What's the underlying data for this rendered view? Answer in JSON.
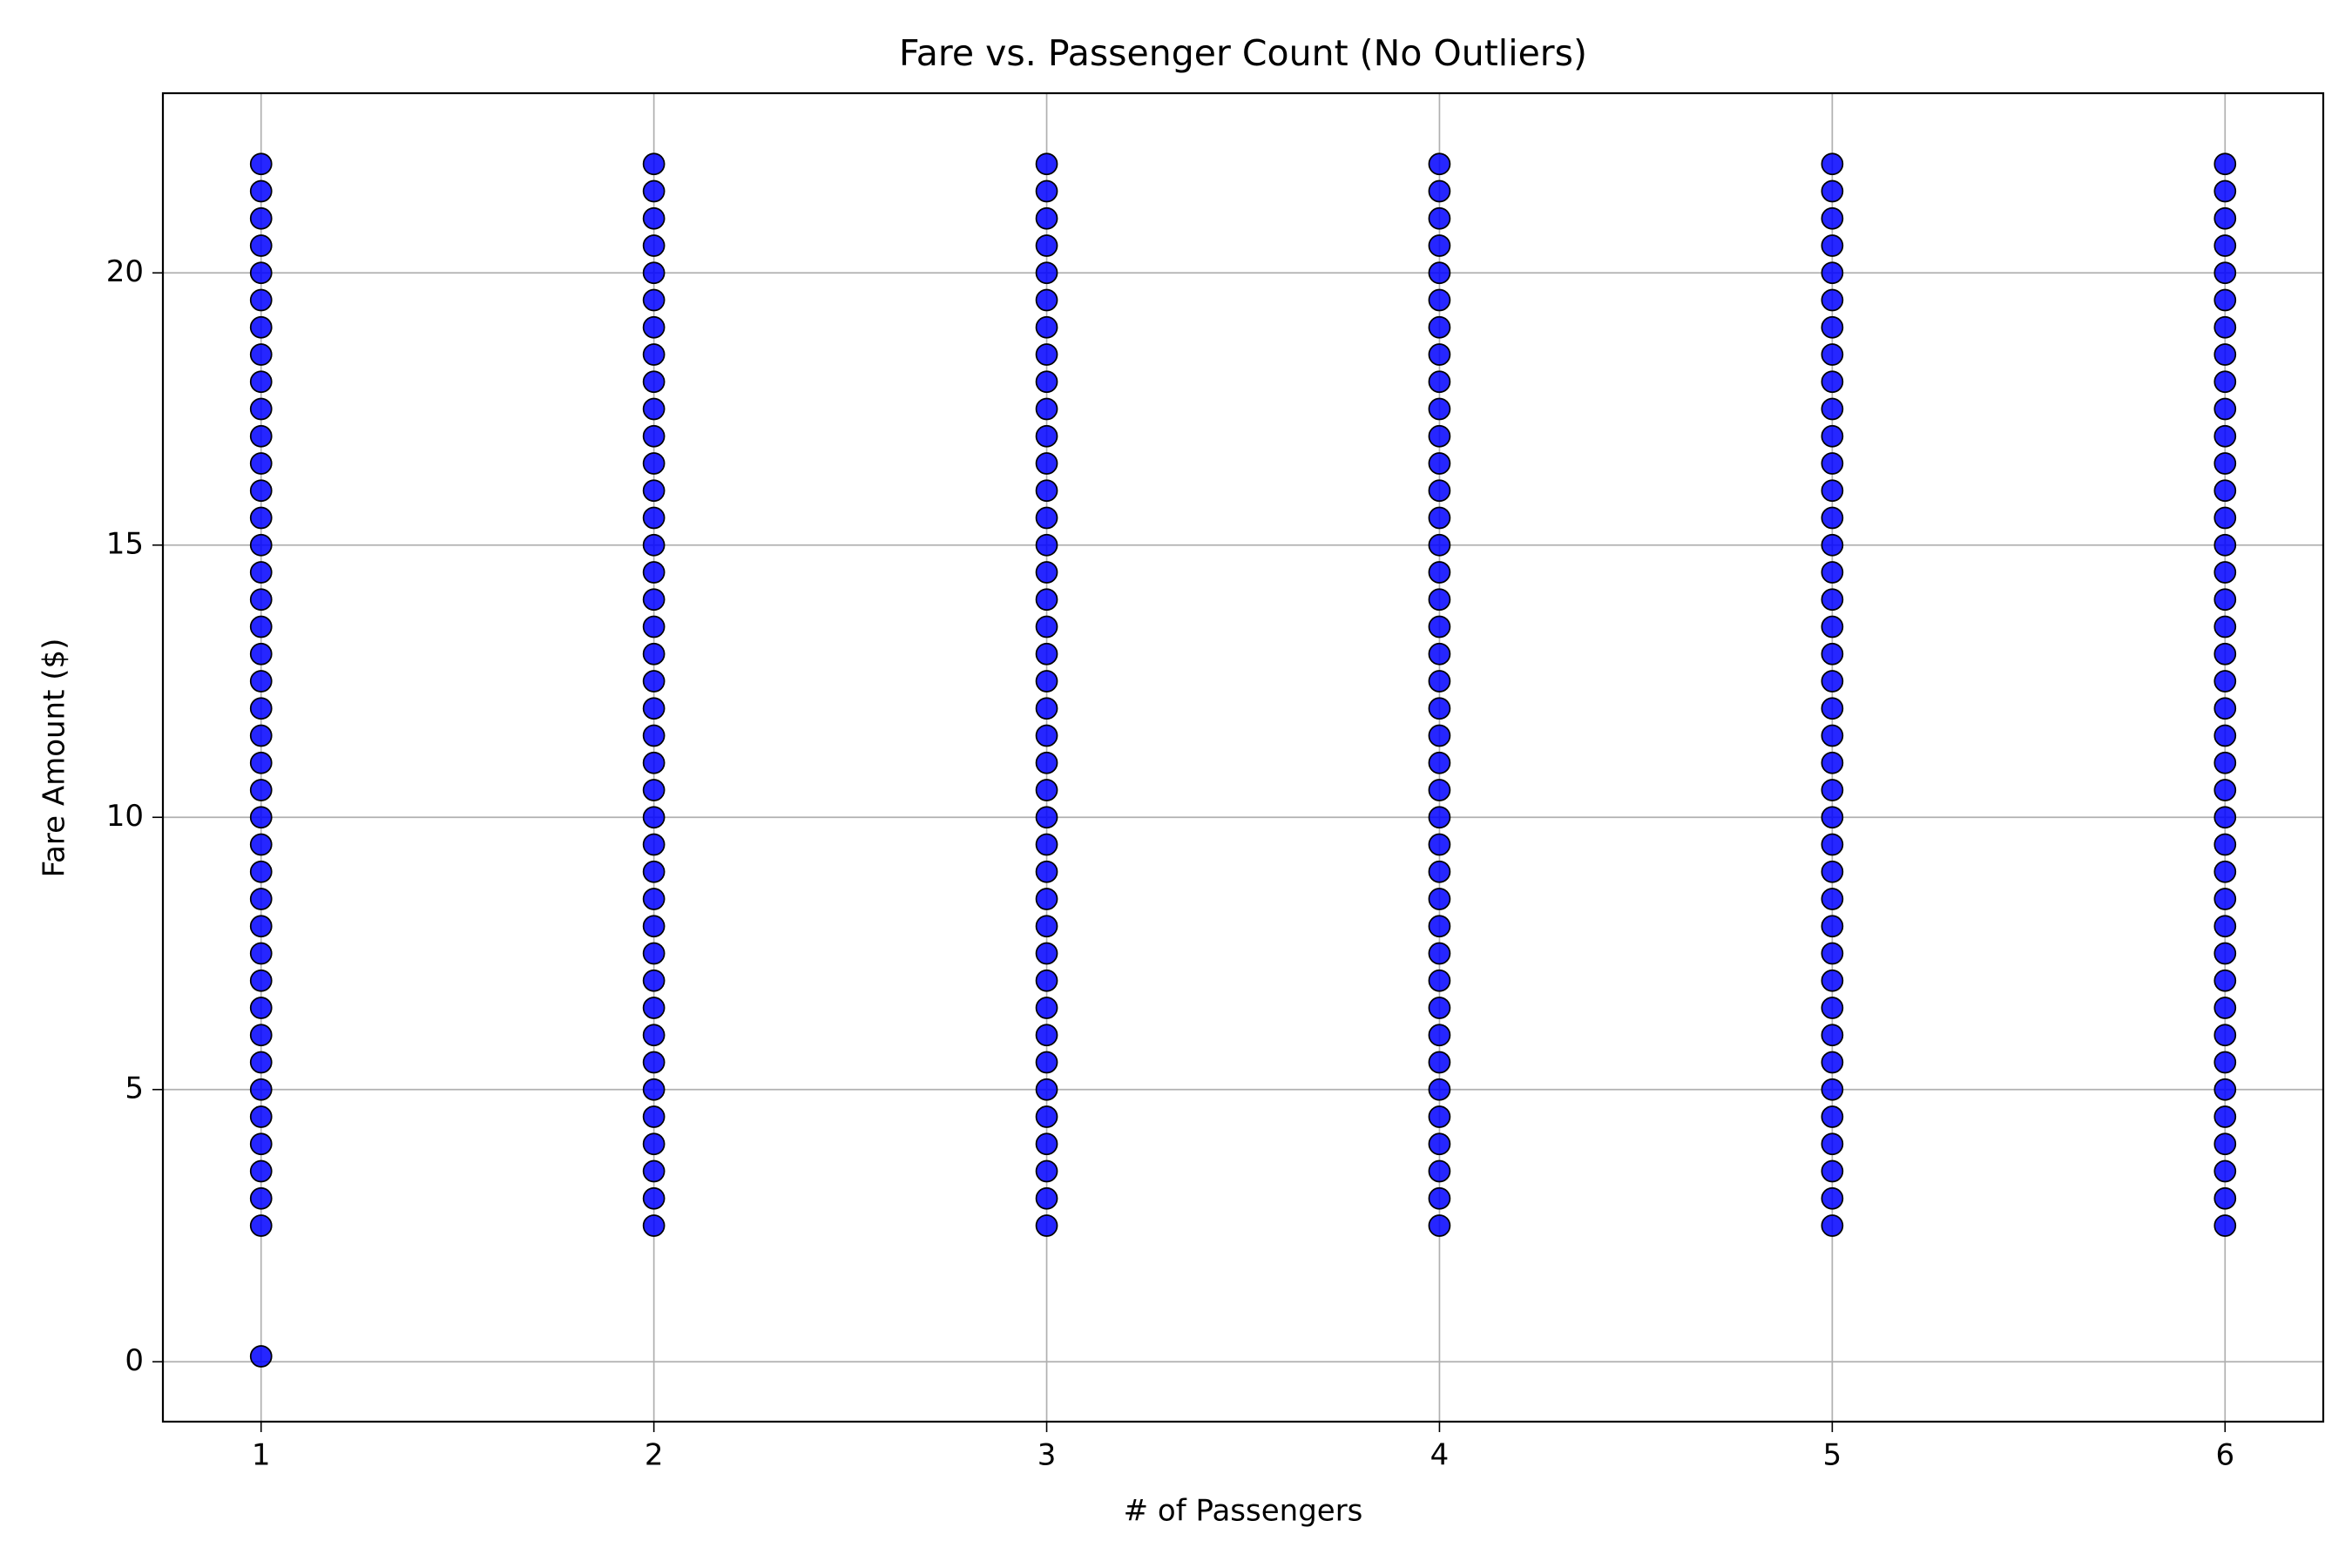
{
  "chart_data": {
    "type": "scatter",
    "title": "Fare vs. Passenger Count (No Outliers)",
    "x_label": "# of Passengers",
    "y_label": "Fare Amount ($)",
    "color": "#0000ff",
    "edge_color": "#000000",
    "grid": true,
    "xlim": [
      0.75,
      6.25
    ],
    "xticks": [
      1,
      2,
      3,
      4,
      5,
      6
    ],
    "ylim": [
      -1.1,
      23.3
    ],
    "yticks": [
      0,
      5,
      10,
      15,
      20
    ],
    "x": [
      1,
      1,
      1,
      1,
      1,
      1,
      1,
      1,
      1,
      1,
      1,
      1,
      1,
      1,
      1,
      1,
      1,
      1,
      1,
      1,
      1,
      1,
      1,
      1,
      1,
      1,
      1,
      1,
      1,
      1,
      1,
      1,
      1,
      1,
      1,
      1,
      1,
      1,
      1,
      1,
      1,
      2,
      2,
      2,
      2,
      2,
      2,
      2,
      2,
      2,
      2,
      2,
      2,
      2,
      2,
      2,
      2,
      2,
      2,
      2,
      2,
      2,
      2,
      2,
      2,
      2,
      2,
      2,
      2,
      2,
      2,
      2,
      2,
      2,
      2,
      2,
      2,
      2,
      2,
      2,
      2,
      3,
      3,
      3,
      3,
      3,
      3,
      3,
      3,
      3,
      3,
      3,
      3,
      3,
      3,
      3,
      3,
      3,
      3,
      3,
      3,
      3,
      3,
      3,
      3,
      3,
      3,
      3,
      3,
      3,
      3,
      3,
      3,
      3,
      3,
      3,
      3,
      3,
      3,
      3,
      3,
      4,
      4,
      4,
      4,
      4,
      4,
      4,
      4,
      4,
      4,
      4,
      4,
      4,
      4,
      4,
      4,
      4,
      4,
      4,
      4,
      4,
      4,
      4,
      4,
      4,
      4,
      4,
      4,
      4,
      4,
      4,
      4,
      4,
      4,
      4,
      4,
      4,
      4,
      4,
      4,
      5,
      5,
      5,
      5,
      5,
      5,
      5,
      5,
      5,
      5,
      5,
      5,
      5,
      5,
      5,
      5,
      5,
      5,
      5,
      5,
      5,
      5,
      5,
      5,
      5,
      5,
      5,
      5,
      5,
      5,
      5,
      5,
      5,
      5,
      5,
      5,
      5,
      5,
      5,
      5,
      6,
      6,
      6,
      6,
      6,
      6,
      6,
      6,
      6,
      6,
      6,
      6,
      6,
      6,
      6,
      6,
      6,
      6,
      6,
      6,
      6,
      6,
      6,
      6,
      6,
      6,
      6,
      6,
      6,
      6,
      6,
      6,
      6,
      6,
      6,
      6,
      6,
      6,
      6,
      6
    ],
    "y": [
      0.1,
      2.5,
      3,
      3.5,
      4,
      4.5,
      5,
      5.5,
      6,
      6.5,
      7,
      7.5,
      8,
      8.5,
      9,
      9.5,
      10,
      10.5,
      11,
      11.5,
      12,
      12.5,
      13,
      13.5,
      14,
      14.5,
      15,
      15.5,
      16,
      16.5,
      17,
      17.5,
      18,
      18.5,
      19,
      19.5,
      20,
      20.5,
      21,
      21.5,
      22,
      2.5,
      3,
      3.5,
      4,
      4.5,
      5,
      5.5,
      6,
      6.5,
      7,
      7.5,
      8,
      8.5,
      9,
      9.5,
      10,
      10.5,
      11,
      11.5,
      12,
      12.5,
      13,
      13.5,
      14,
      14.5,
      15,
      15.5,
      16,
      16.5,
      17,
      17.5,
      18,
      18.5,
      19,
      19.5,
      20,
      20.5,
      21,
      21.5,
      22,
      2.5,
      3,
      3.5,
      4,
      4.5,
      5,
      5.5,
      6,
      6.5,
      7,
      7.5,
      8,
      8.5,
      9,
      9.5,
      10,
      10.5,
      11,
      11.5,
      12,
      12.5,
      13,
      13.5,
      14,
      14.5,
      15,
      15.5,
      16,
      16.5,
      17,
      17.5,
      18,
      18.5,
      19,
      19.5,
      20,
      20.5,
      21,
      21.5,
      22,
      2.5,
      3,
      3.5,
      4,
      4.5,
      5,
      5.5,
      6,
      6.5,
      7,
      7.5,
      8,
      8.5,
      9,
      9.5,
      10,
      10.5,
      11,
      11.5,
      12,
      12.5,
      13,
      13.5,
      14,
      14.5,
      15,
      15.5,
      16,
      16.5,
      17,
      17.5,
      18,
      18.5,
      19,
      19.5,
      20,
      20.5,
      21,
      21.5,
      22,
      2.5,
      3,
      3.5,
      4,
      4.5,
      5,
      5.5,
      6,
      6.5,
      7,
      7.5,
      8,
      8.5,
      9,
      9.5,
      10,
      10.5,
      11,
      11.5,
      12,
      12.5,
      13,
      13.5,
      14,
      14.5,
      15,
      15.5,
      16,
      16.5,
      17,
      17.5,
      18,
      18.5,
      19,
      19.5,
      20,
      20.5,
      21,
      21.5,
      22,
      2.5,
      3,
      3.5,
      4,
      4.5,
      5,
      5.5,
      6,
      6.5,
      7,
      7.5,
      8,
      8.5,
      9,
      9.5,
      10,
      10.5,
      11,
      11.5,
      12,
      12.5,
      13,
      13.5,
      14,
      14.5,
      15,
      15.5,
      16,
      16.5,
      17,
      17.5,
      18,
      18.5,
      19,
      19.5,
      20,
      20.5,
      21,
      21.5,
      22
    ]
  }
}
